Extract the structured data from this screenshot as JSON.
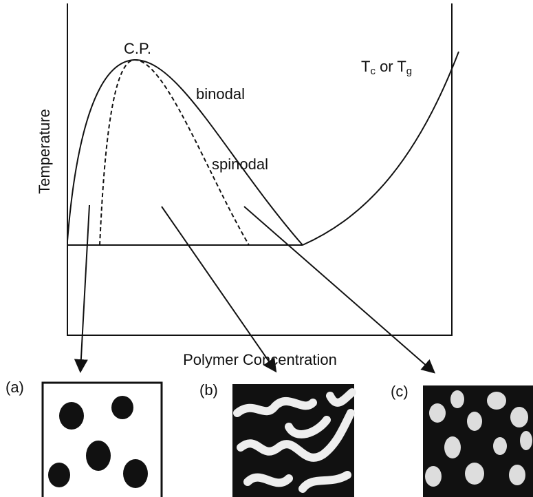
{
  "labels": {
    "critical_point": "C.P.",
    "binodal": "binodal",
    "spinodal": "spinodal",
    "tc_or_tg": {
      "t1": "T",
      "sub1": "c",
      "mid": " or T",
      "sub2": "g"
    }
  },
  "axes": {
    "y_label": "Temperature",
    "x_label": "Polymer Concentration"
  },
  "panels": {
    "a": "(a)",
    "b": "(b)",
    "c": "(c)"
  }
}
